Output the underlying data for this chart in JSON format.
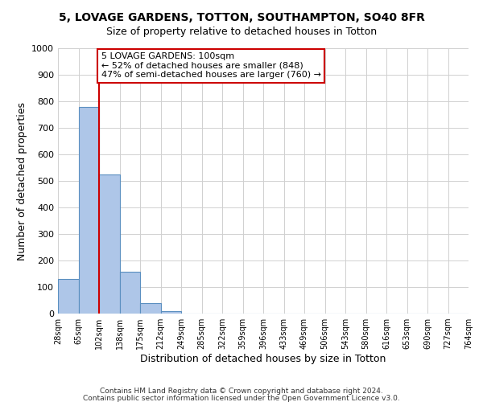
{
  "title": "5, LOVAGE GARDENS, TOTTON, SOUTHAMPTON, SO40 8FR",
  "subtitle": "Size of property relative to detached houses in Totton",
  "xlabel": "Distribution of detached houses by size in Totton",
  "ylabel": "Number of detached properties",
  "bin_labels": [
    "28sqm",
    "65sqm",
    "102sqm",
    "138sqm",
    "175sqm",
    "212sqm",
    "249sqm",
    "285sqm",
    "322sqm",
    "359sqm",
    "396sqm",
    "433sqm",
    "469sqm",
    "506sqm",
    "543sqm",
    "580sqm",
    "616sqm",
    "653sqm",
    "690sqm",
    "727sqm",
    "764sqm"
  ],
  "bar_heights": [
    130,
    778,
    525,
    157,
    40,
    8,
    0,
    0,
    0,
    0,
    0,
    0,
    0,
    0,
    0,
    0,
    0,
    0,
    0,
    0
  ],
  "bar_color": "#aec6e8",
  "bar_edge_color": "#5a8fc0",
  "property_line_x": 2,
  "property_line_color": "#cc0000",
  "ylim": [
    0,
    1000
  ],
  "yticks": [
    0,
    100,
    200,
    300,
    400,
    500,
    600,
    700,
    800,
    900,
    1000
  ],
  "annotation_line0": "5 LOVAGE GARDENS: 100sqm",
  "annotation_line1": "← 52% of detached houses are smaller (848)",
  "annotation_line2": "47% of semi-detached houses are larger (760) →",
  "annotation_box_color": "#cc0000",
  "footer_line1": "Contains HM Land Registry data © Crown copyright and database right 2024.",
  "footer_line2": "Contains public sector information licensed under the Open Government Licence v3.0.",
  "background_color": "#ffffff",
  "grid_color": "#d0d0d0"
}
